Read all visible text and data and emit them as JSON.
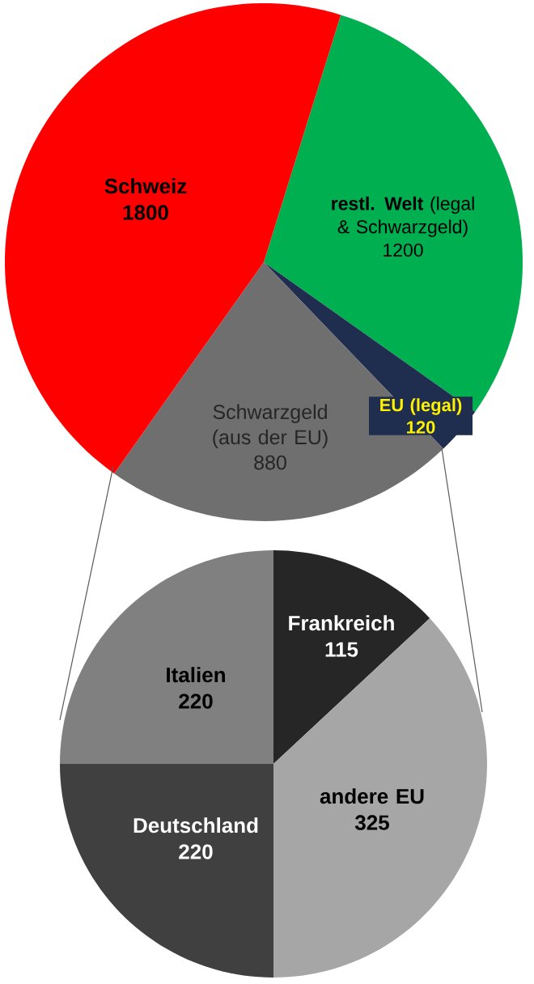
{
  "chart_data": [
    {
      "type": "pie",
      "categories": [
        "**restl. Welt** (legal & Schwarzgeld)",
        "EU (legal)",
        "Schwarzgeld (aus der EU)",
        "Schweiz"
      ],
      "values": [
        1200,
        120,
        880,
        1800
      ],
      "colors": [
        "#00b050",
        "#1f2d4e",
        "#6f6f6f",
        "#ff0000"
      ],
      "data_labels": true
    },
    {
      "type": "pie",
      "categories": [
        "Frankreich",
        "andere EU",
        "Deutschland",
        "Italien"
      ],
      "values": [
        115,
        325,
        220,
        220
      ],
      "colors": [
        "#262626",
        "#a6a6a6",
        "#404040",
        "#808080"
      ],
      "data_labels": true
    }
  ]
}
